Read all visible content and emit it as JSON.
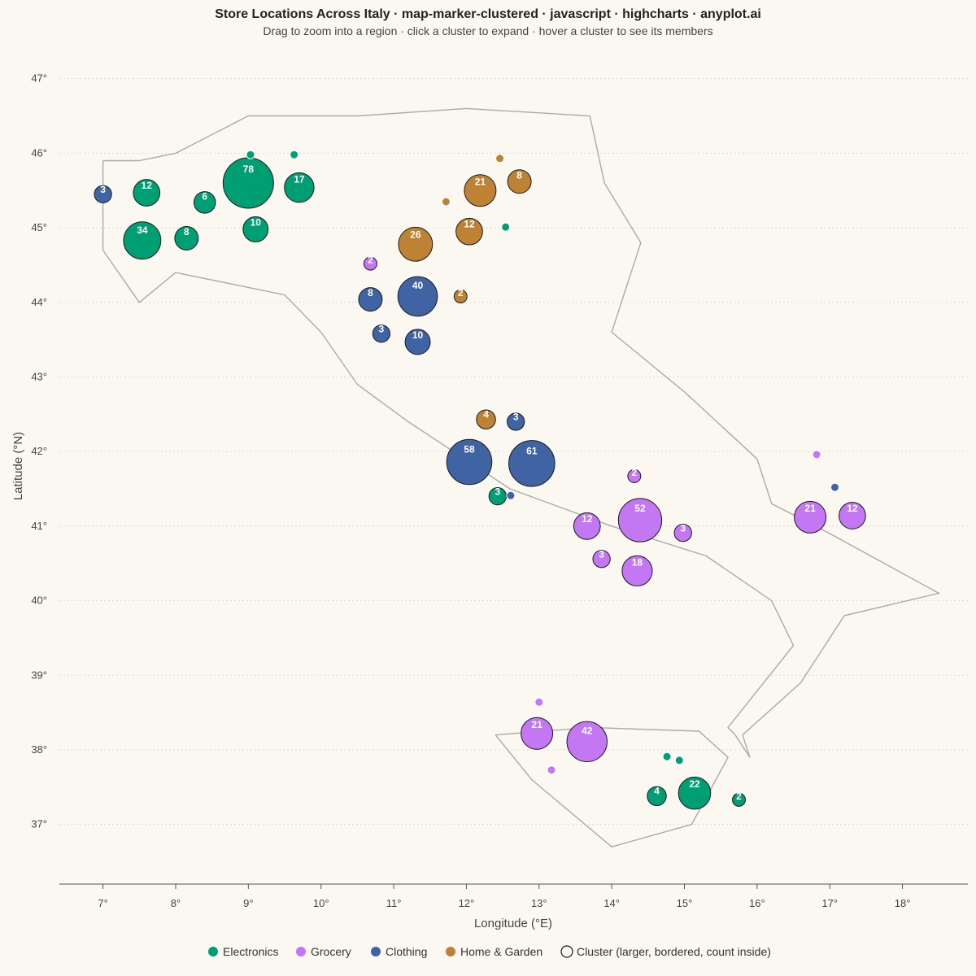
{
  "chart_data": {
    "type": "scatter",
    "title": "Store Locations Across Italy · map-marker-clustered · javascript · highcharts · anyplot.ai",
    "subtitle": "Drag to zoom into a region · click a cluster to expand · hover a cluster to see its members",
    "xlabel": "Longitude (°E)",
    "ylabel": "Latitude (°N)",
    "xlim": [
      6.4,
      18.9
    ],
    "ylim": [
      36.2,
      47.4
    ],
    "x_ticks": [
      "7°",
      "8°",
      "9°",
      "10°",
      "11°",
      "12°",
      "13°",
      "14°",
      "15°",
      "16°",
      "17°",
      "18°"
    ],
    "y_ticks": [
      "37°",
      "38°",
      "39°",
      "40°",
      "41°",
      "42°",
      "43°",
      "44°",
      "45°",
      "46°",
      "47°"
    ],
    "grid": "horizontal dotted",
    "legend_position": "bottom",
    "categories": {
      "electronics": {
        "name": "Electronics",
        "color": "#009E73"
      },
      "grocery": {
        "name": "Grocery",
        "color": "#C377F2"
      },
      "clothing": {
        "name": "Clothing",
        "color": "#3F63A3"
      },
      "home": {
        "name": "Home & Garden",
        "color": "#BD8233"
      }
    },
    "legend": [
      {
        "key": "electronics",
        "label": "Electronics"
      },
      {
        "key": "grocery",
        "label": "Grocery"
      },
      {
        "key": "clothing",
        "label": "Clothing"
      },
      {
        "key": "home",
        "label": "Home & Garden"
      },
      {
        "key": "cluster",
        "label": "Cluster (larger, bordered, count inside)"
      }
    ],
    "outline": [
      [
        7.0,
        45.9
      ],
      [
        7.5,
        45.9
      ],
      [
        8.0,
        46.0
      ],
      [
        9.0,
        46.5
      ],
      [
        10.5,
        46.5
      ],
      [
        12.0,
        46.6
      ],
      [
        13.7,
        46.5
      ],
      [
        13.9,
        45.6
      ],
      [
        14.4,
        44.8
      ],
      [
        14.0,
        43.6
      ],
      [
        15.0,
        42.8
      ],
      [
        16.0,
        41.9
      ],
      [
        16.2,
        41.3
      ],
      [
        17.0,
        40.9
      ],
      [
        18.5,
        40.1
      ],
      [
        17.2,
        39.8
      ],
      [
        16.6,
        38.9
      ],
      [
        15.8,
        38.2
      ],
      [
        15.9,
        37.9
      ],
      [
        15.7,
        38.2
      ],
      [
        15.6,
        38.3
      ],
      [
        16.5,
        39.4
      ],
      [
        16.2,
        40.0
      ],
      [
        15.3,
        40.6
      ],
      [
        14.0,
        41.0
      ],
      [
        12.6,
        41.5
      ],
      [
        11.2,
        42.4
      ],
      [
        10.5,
        42.9
      ],
      [
        10.0,
        43.6
      ],
      [
        9.5,
        44.1
      ],
      [
        8.0,
        44.4
      ],
      [
        7.5,
        44.0
      ],
      [
        7.0,
        44.7
      ],
      [
        7.0,
        45.9
      ]
    ],
    "sicily": [
      [
        12.4,
        38.2
      ],
      [
        13.7,
        38.3
      ],
      [
        15.2,
        38.25
      ],
      [
        15.6,
        37.9
      ],
      [
        15.1,
        37.0
      ],
      [
        14.0,
        36.7
      ],
      [
        12.9,
        37.6
      ],
      [
        12.4,
        38.2
      ]
    ],
    "clusters": [
      {
        "lon": 9.0,
        "lat": 45.6,
        "count": 78,
        "cat": "electronics"
      },
      {
        "lon": 7.54,
        "lat": 44.83,
        "count": 34,
        "cat": "electronics"
      },
      {
        "lon": 9.7,
        "lat": 45.54,
        "count": 17,
        "cat": "electronics"
      },
      {
        "lon": 7.6,
        "lat": 45.47,
        "count": 12,
        "cat": "electronics"
      },
      {
        "lon": 9.1,
        "lat": 44.98,
        "count": 10,
        "cat": "electronics"
      },
      {
        "lon": 8.15,
        "lat": 44.86,
        "count": 8,
        "cat": "electronics"
      },
      {
        "lon": 8.4,
        "lat": 45.34,
        "count": 6,
        "cat": "electronics"
      },
      {
        "lon": 7.0,
        "lat": 45.45,
        "count": 3,
        "cat": "clothing"
      },
      {
        "lon": 12.19,
        "lat": 45.5,
        "count": 21,
        "cat": "home"
      },
      {
        "lon": 12.73,
        "lat": 45.62,
        "count": 8,
        "cat": "home"
      },
      {
        "lon": 11.3,
        "lat": 44.78,
        "count": 26,
        "cat": "home"
      },
      {
        "lon": 12.04,
        "lat": 44.95,
        "count": 12,
        "cat": "home"
      },
      {
        "lon": 11.92,
        "lat": 44.08,
        "count": 2,
        "cat": "home"
      },
      {
        "lon": 10.68,
        "lat": 44.52,
        "count": 2,
        "cat": "grocery"
      },
      {
        "lon": 11.33,
        "lat": 44.08,
        "count": 40,
        "cat": "clothing"
      },
      {
        "lon": 10.68,
        "lat": 44.04,
        "count": 8,
        "cat": "clothing"
      },
      {
        "lon": 10.83,
        "lat": 43.58,
        "count": 3,
        "cat": "clothing"
      },
      {
        "lon": 11.33,
        "lat": 43.47,
        "count": 10,
        "cat": "clothing"
      },
      {
        "lon": 12.27,
        "lat": 42.43,
        "count": 4,
        "cat": "home"
      },
      {
        "lon": 12.68,
        "lat": 42.4,
        "count": 3,
        "cat": "clothing"
      },
      {
        "lon": 12.04,
        "lat": 41.86,
        "count": 58,
        "cat": "clothing"
      },
      {
        "lon": 12.9,
        "lat": 41.84,
        "count": 61,
        "cat": "clothing"
      },
      {
        "lon": 12.43,
        "lat": 41.4,
        "count": 3,
        "cat": "electronics"
      },
      {
        "lon": 14.31,
        "lat": 41.67,
        "count": 2,
        "cat": "grocery"
      },
      {
        "lon": 14.39,
        "lat": 41.08,
        "count": 52,
        "cat": "grocery"
      },
      {
        "lon": 13.66,
        "lat": 41.0,
        "count": 12,
        "cat": "grocery"
      },
      {
        "lon": 14.98,
        "lat": 40.91,
        "count": 3,
        "cat": "grocery"
      },
      {
        "lon": 13.86,
        "lat": 40.56,
        "count": 3,
        "cat": "grocery"
      },
      {
        "lon": 14.35,
        "lat": 40.4,
        "count": 18,
        "cat": "grocery"
      },
      {
        "lon": 16.73,
        "lat": 41.12,
        "count": 21,
        "cat": "grocery"
      },
      {
        "lon": 17.31,
        "lat": 41.14,
        "count": 12,
        "cat": "grocery"
      },
      {
        "lon": 12.97,
        "lat": 38.22,
        "count": 21,
        "cat": "grocery"
      },
      {
        "lon": 13.66,
        "lat": 38.11,
        "count": 42,
        "cat": "grocery"
      },
      {
        "lon": 14.62,
        "lat": 37.38,
        "count": 4,
        "cat": "electronics"
      },
      {
        "lon": 15.14,
        "lat": 37.42,
        "count": 22,
        "cat": "electronics"
      },
      {
        "lon": 15.75,
        "lat": 37.33,
        "count": 2,
        "cat": "electronics"
      }
    ],
    "points": [
      {
        "lon": 9.03,
        "lat": 45.98,
        "cat": "electronics"
      },
      {
        "lon": 9.63,
        "lat": 45.98,
        "cat": "electronics"
      },
      {
        "lon": 12.46,
        "lat": 45.93,
        "cat": "home"
      },
      {
        "lon": 11.72,
        "lat": 45.35,
        "cat": "home"
      },
      {
        "lon": 12.54,
        "lat": 45.01,
        "cat": "electronics"
      },
      {
        "lon": 12.61,
        "lat": 41.41,
        "cat": "clothing"
      },
      {
        "lon": 16.82,
        "lat": 41.96,
        "cat": "grocery"
      },
      {
        "lon": 17.07,
        "lat": 41.52,
        "cat": "clothing"
      },
      {
        "lon": 13.0,
        "lat": 38.64,
        "cat": "grocery"
      },
      {
        "lon": 13.17,
        "lat": 37.73,
        "cat": "grocery"
      },
      {
        "lon": 14.76,
        "lat": 37.91,
        "cat": "electronics"
      },
      {
        "lon": 14.93,
        "lat": 37.86,
        "cat": "electronics"
      }
    ]
  }
}
